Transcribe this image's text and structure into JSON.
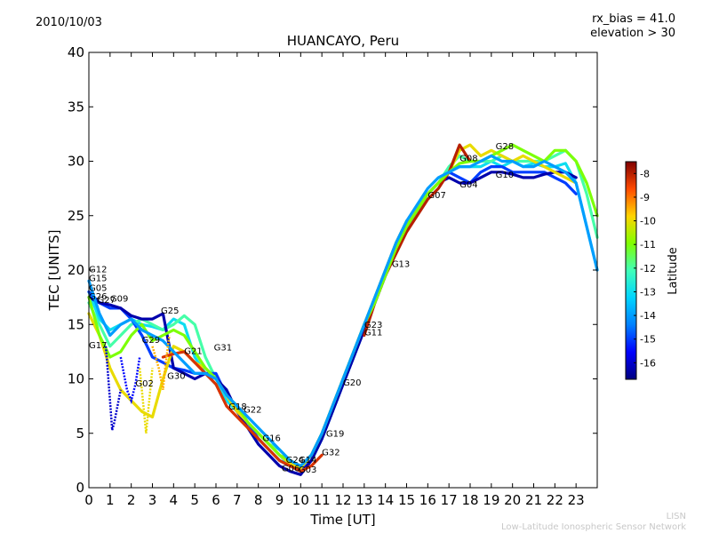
{
  "header": {
    "date": "2010/10/03",
    "rx_bias": "rx_bias = 41.0",
    "elevation": "elevation > 30",
    "title": "HUANCAYO, Peru"
  },
  "footer": {
    "credit_short": "LISN",
    "credit_long": "Low-Latitude Ionospheric Sensor Network"
  },
  "chart_data": {
    "type": "scatter",
    "title": "HUANCAYO, Peru",
    "xlabel": "Time [UT]",
    "ylabel": "TEC [UNITS]",
    "xlim": [
      0,
      24
    ],
    "ylim": [
      0,
      40
    ],
    "xticks": [
      "0",
      "1",
      "2",
      "3",
      "4",
      "5",
      "6",
      "7",
      "8",
      "9",
      "10",
      "11",
      "12",
      "13",
      "14",
      "15",
      "16",
      "17",
      "18",
      "19",
      "20",
      "21",
      "22",
      "23"
    ],
    "yticks": [
      "0",
      "5",
      "10",
      "15",
      "20",
      "25",
      "30",
      "35",
      "40"
    ],
    "grid": false,
    "colorbar": {
      "label": "Latitude",
      "range": [
        -16.7,
        -7.5
      ],
      "ticks": [
        "-8",
        "-9",
        "-10",
        "-11",
        "-12",
        "-13",
        "-14",
        "-15",
        "-16"
      ],
      "colors": [
        "#00007f",
        "#0000ff",
        "#0080ff",
        "#00d4ff",
        "#40ffb8",
        "#80ff00",
        "#ffd400",
        "#ff4a00",
        "#7f0000"
      ]
    },
    "satellite_labels": [
      {
        "name": "G12",
        "x": 0.0,
        "y": 19.8
      },
      {
        "name": "G15",
        "x": 0.0,
        "y": 19.0
      },
      {
        "name": "G05",
        "x": 0.0,
        "y": 18.1
      },
      {
        "name": "G26",
        "x": 0.0,
        "y": 17.3
      },
      {
        "name": "G27",
        "x": 0.4,
        "y": 17.0
      },
      {
        "name": "G09",
        "x": 1.0,
        "y": 17.1
      },
      {
        "name": "G25",
        "x": 3.4,
        "y": 16.0
      },
      {
        "name": "G17",
        "x": 0.0,
        "y": 12.8
      },
      {
        "name": "G29",
        "x": 2.5,
        "y": 13.3
      },
      {
        "name": "G21",
        "x": 4.5,
        "y": 12.3
      },
      {
        "name": "G31",
        "x": 5.9,
        "y": 12.6
      },
      {
        "name": "G30",
        "x": 3.7,
        "y": 10.0
      },
      {
        "name": "G02",
        "x": 2.2,
        "y": 9.3
      },
      {
        "name": "G18",
        "x": 6.6,
        "y": 7.2
      },
      {
        "name": "G22",
        "x": 7.3,
        "y": 6.9
      },
      {
        "name": "G16",
        "x": 8.2,
        "y": 4.3
      },
      {
        "name": "G24",
        "x": 9.3,
        "y": 2.3
      },
      {
        "name": "G14",
        "x": 9.9,
        "y": 2.3
      },
      {
        "name": "G06",
        "x": 9.1,
        "y": 1.5
      },
      {
        "name": "G03",
        "x": 9.9,
        "y": 1.4
      },
      {
        "name": "G32",
        "x": 11.0,
        "y": 3.0
      },
      {
        "name": "G19",
        "x": 11.2,
        "y": 4.7
      },
      {
        "name": "G20",
        "x": 12.0,
        "y": 9.4
      },
      {
        "name": "G23",
        "x": 13.0,
        "y": 14.7
      },
      {
        "name": "G11",
        "x": 13.0,
        "y": 14.0
      },
      {
        "name": "G13",
        "x": 14.3,
        "y": 20.3
      },
      {
        "name": "G07",
        "x": 16.0,
        "y": 26.6
      },
      {
        "name": "G04",
        "x": 17.5,
        "y": 27.6
      },
      {
        "name": "G08",
        "x": 17.5,
        "y": 30.0
      },
      {
        "name": "G28",
        "x": 19.2,
        "y": 31.1
      },
      {
        "name": "G10",
        "x": 19.2,
        "y": 28.5
      }
    ],
    "series": [
      {
        "lat": -13.0,
        "x": [
          0,
          0.5,
          1,
          1.5,
          2,
          2.5,
          3,
          3.5,
          4,
          4.5,
          5,
          5.5,
          6,
          6.5,
          7,
          7.5,
          8,
          8.5,
          9,
          9.5,
          10,
          10.5,
          11,
          11.5,
          12,
          12.5,
          13,
          13.5,
          14,
          14.5,
          15,
          15.5,
          16,
          16.5,
          17,
          17.5,
          18,
          18.5,
          19,
          19.5,
          20,
          20.5,
          21,
          21.5,
          22,
          22.5,
          23,
          23.5,
          24
        ],
        "y": [
          18,
          15.5,
          14.5,
          15,
          15.5,
          15,
          14.8,
          14.5,
          15.5,
          15,
          12,
          10.5,
          9.5,
          8,
          7,
          6,
          5,
          4,
          3,
          2,
          1.5,
          2.5,
          4.5,
          7,
          10,
          12.5,
          15,
          17.5,
          20,
          22.5,
          24.5,
          25.5,
          27,
          28,
          29,
          29.5,
          29.5,
          29.5,
          30,
          29.5,
          30,
          29.5,
          29.8,
          29.5,
          29.5,
          29.8,
          28,
          24,
          20
        ]
      },
      {
        "lat": -12.0,
        "x": [
          0,
          0.5,
          1,
          1.5,
          2,
          2.5,
          3,
          3.5,
          4,
          4.5,
          5,
          5.5,
          6,
          6.5,
          7,
          7.5,
          8,
          8.5,
          9,
          9.5,
          10,
          10.5,
          11,
          11.5,
          12,
          12.5,
          13,
          13.5,
          14,
          14.5,
          15,
          15.5,
          16,
          16.5,
          17,
          17.5,
          18,
          18.5,
          19,
          19.5,
          20,
          20.5,
          21,
          21.5,
          22,
          22.5,
          23,
          23.5,
          24
        ],
        "y": [
          17,
          15,
          13,
          14,
          15,
          15.5,
          15,
          14.5,
          15,
          15.8,
          15,
          12,
          10,
          8.5,
          7,
          6,
          5,
          4,
          3.5,
          2.5,
          1.5,
          2.5,
          4.5,
          7,
          9.5,
          12,
          14.5,
          17,
          19.5,
          22,
          24.5,
          25.5,
          27,
          28,
          29.5,
          30.5,
          30,
          30,
          30,
          30.5,
          30,
          30,
          30,
          30,
          30.5,
          31,
          30,
          27,
          23
        ]
      },
      {
        "lat": -15.0,
        "x": [
          0,
          0.5,
          1,
          1.5,
          2,
          2.5,
          3,
          3.5,
          4,
          4.5,
          5,
          5.5,
          6,
          6.5,
          7,
          7.5,
          8,
          8.5,
          9,
          9.5,
          10,
          10.5,
          11,
          11.5,
          12,
          12.5,
          13,
          13.5,
          14,
          14.5,
          15,
          15.5,
          16,
          16.5,
          17,
          17.5,
          18,
          18.5,
          19,
          19.5,
          20,
          20.5,
          21,
          21.5,
          22,
          22.5,
          23
        ],
        "y": [
          18,
          17,
          16.5,
          16.5,
          15.5,
          14,
          12,
          11.5,
          11,
          10.8,
          10.5,
          10.5,
          10.5,
          8.5,
          7.5,
          6,
          4.5,
          3.5,
          2.5,
          2,
          1.5,
          2.5,
          4.5,
          7,
          9.5,
          12,
          14.5,
          17,
          19.5,
          22,
          24,
          25.5,
          27,
          28,
          29,
          28.5,
          28,
          29,
          29.5,
          29.5,
          29,
          29,
          29,
          29,
          28.5,
          28,
          27
        ]
      },
      {
        "lat": -16.3,
        "x": [
          0,
          0.5,
          1,
          1.5,
          2,
          2.5,
          3,
          3.5,
          4,
          4.5,
          5,
          5.5,
          6,
          6.5,
          7,
          7.5,
          8,
          8.5,
          9,
          9.5,
          10,
          10.5,
          11,
          11.5,
          12,
          12.5,
          13,
          13.5,
          14,
          14.5,
          15,
          15.5,
          16,
          16.5,
          17,
          17.5,
          18,
          18.5,
          19,
          19.5,
          20,
          20.5,
          21,
          21.5,
          22,
          22.5,
          23
        ],
        "y": [
          17.5,
          17,
          16.8,
          16.5,
          15.8,
          15.5,
          15.5,
          16,
          11,
          10.5,
          10,
          10.5,
          10,
          9,
          7,
          5.5,
          4,
          3,
          2,
          1.5,
          1.2,
          2.5,
          4.5,
          7,
          9.5,
          12,
          14.5,
          17,
          19.5,
          22,
          24,
          25.5,
          27,
          28,
          28.5,
          28,
          28,
          28.5,
          29,
          29,
          28.8,
          28.5,
          28.5,
          28.8,
          29,
          29,
          28.5
        ]
      },
      {
        "lat": -10.0,
        "x": [
          0,
          0.5,
          1,
          1.5,
          2,
          2.5,
          3,
          3.5,
          4,
          4.5,
          5,
          5.5,
          6,
          6.5,
          7,
          7.5,
          8,
          8.5,
          9,
          9.5,
          10,
          10.5,
          11,
          11.5,
          12,
          12.5,
          13,
          13.5,
          14,
          14.5,
          15,
          15.5,
          16,
          16.5,
          17,
          17.5,
          18,
          18.5,
          19,
          19.5,
          20,
          20.5,
          21,
          21.5,
          22,
          22.5,
          23
        ],
        "y": [
          16,
          14,
          11,
          9,
          8,
          7,
          6.5,
          10,
          13,
          12.5,
          11.5,
          11,
          10,
          8.5,
          7,
          6,
          5,
          4,
          3,
          2.2,
          1.8,
          3,
          5,
          7.5,
          10,
          12.5,
          15,
          17.5,
          20,
          22.5,
          24.5,
          25.5,
          27,
          28,
          29,
          31,
          31.5,
          30.5,
          31,
          30.5,
          30,
          30.5,
          30,
          29.5,
          29,
          28.5,
          28
        ]
      },
      {
        "lat": -8.0,
        "x": [
          13,
          13.5,
          14,
          14.5,
          15,
          15.5,
          16,
          16.5,
          17,
          17.5,
          18
        ],
        "y": [
          14,
          17,
          19.5,
          21.5,
          23.5,
          25,
          26.5,
          27.5,
          29,
          31.5,
          30
        ]
      },
      {
        "lat": -8.3,
        "x": [
          3.5,
          4,
          4.5,
          5,
          5.5,
          6,
          6.5,
          7,
          7.5,
          8,
          8.5,
          9,
          9.5,
          10,
          10.5,
          11
        ],
        "y": [
          12,
          12.3,
          12.5,
          11.5,
          10.5,
          9.5,
          7.5,
          6.5,
          5.5,
          4.5,
          3.5,
          2.5,
          2,
          1.5,
          2,
          3
        ]
      },
      {
        "lat": -11.0,
        "x": [
          0,
          0.5,
          1,
          1.5,
          2,
          2.5,
          3,
          3.5,
          4,
          4.5,
          5,
          5.5,
          6,
          6.5,
          7,
          7.5,
          8,
          8.5,
          9,
          9.5,
          10,
          10.5,
          11,
          11.5,
          12,
          12.5,
          13,
          13.5,
          14,
          14.5,
          15,
          15.5,
          16,
          16.5,
          17,
          17.5,
          18,
          18.5,
          19,
          19.5,
          20,
          20.5,
          21,
          21.5,
          22,
          22.5,
          23,
          23.5,
          24
        ],
        "y": [
          17.5,
          14,
          12,
          12.5,
          14,
          15,
          13.5,
          14,
          14.5,
          14,
          12.5,
          11,
          10,
          8.5,
          7.5,
          6,
          5,
          4,
          3,
          2.5,
          2,
          3,
          5,
          7.5,
          10,
          12.5,
          15,
          17,
          19.5,
          22,
          24,
          25.5,
          27,
          28,
          29,
          29.8,
          30,
          30,
          30.5,
          31,
          31.5,
          31,
          30.5,
          30,
          31,
          31,
          30,
          28,
          25
        ]
      },
      {
        "lat": -14.0,
        "x": [
          0,
          0.5,
          1,
          1.5,
          2,
          2.5,
          3,
          3.5,
          4,
          4.5,
          5,
          5.5,
          6,
          6.5,
          7,
          7.5,
          8,
          8.5,
          9,
          9.5,
          10,
          10.5,
          11,
          11.5,
          12,
          12.5,
          13,
          13.5,
          14,
          14.5,
          15,
          15.5,
          16,
          16.5,
          17,
          17.5,
          18,
          18.5,
          19,
          19.5,
          20,
          20.5,
          21,
          21.5,
          22,
          22.5,
          23,
          23.5,
          24
        ],
        "y": [
          19,
          16,
          14,
          15,
          15.5,
          14.5,
          14,
          13.5,
          12.5,
          11.5,
          10.5,
          10.5,
          10,
          8.5,
          7.5,
          6.5,
          5.5,
          4.5,
          3.5,
          2.5,
          2,
          3,
          5,
          7.5,
          10,
          12.5,
          15,
          17.5,
          20,
          22.5,
          24.5,
          26,
          27.5,
          28.5,
          29,
          29.5,
          29.5,
          30,
          30.5,
          30,
          30,
          29.5,
          29.5,
          30,
          29.5,
          29,
          28,
          24,
          20
        ]
      }
    ],
    "x_minimal_dips": [
      {
        "lat": -16.0,
        "x": [
          0.8,
          1.0,
          1.1,
          1.2,
          1.4,
          1.5
        ],
        "y": [
          13,
          8,
          5.3,
          6,
          8,
          9
        ]
      },
      {
        "lat": -10.0,
        "x": [
          2.4,
          2.6,
          2.7,
          2.8,
          3.0
        ],
        "y": [
          11,
          7,
          5,
          7,
          11
        ]
      },
      {
        "lat": -15.5,
        "x": [
          1.5,
          1.8,
          2.0,
          2.2,
          2.4
        ],
        "y": [
          12,
          9,
          8,
          9.5,
          12
        ]
      },
      {
        "lat": -9.5,
        "x": [
          3.0,
          3.3,
          3.5,
          3.6,
          3.8
        ],
        "y": [
          13,
          11,
          9,
          11,
          14
        ]
      }
    ]
  }
}
